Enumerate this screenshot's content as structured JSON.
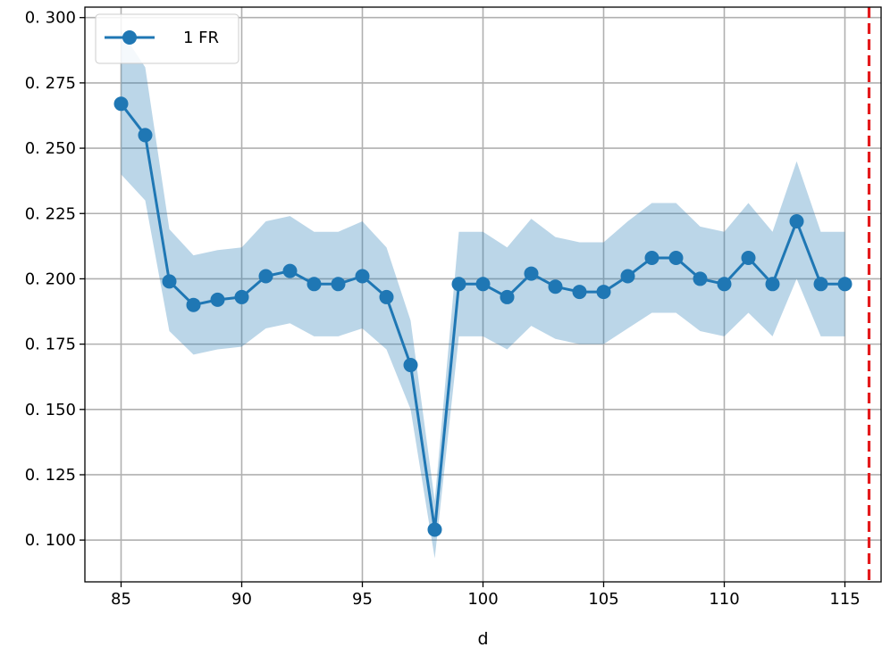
{
  "chart_data": {
    "type": "line",
    "xlabel": "d",
    "ylabel": "",
    "xlim": [
      83.5,
      116.5
    ],
    "ylim": [
      0.084,
      0.304
    ],
    "xticks": [
      85,
      90,
      95,
      100,
      105,
      110,
      115
    ],
    "xtick_labels": [
      "85",
      "90",
      "95",
      "100",
      "105",
      "110",
      "115"
    ],
    "yticks": [
      0.1,
      0.125,
      0.15,
      0.175,
      0.2,
      0.225,
      0.25,
      0.275,
      0.3
    ],
    "ytick_labels": [
      "0. 100",
      "0. 125",
      "0. 150",
      "0. 175",
      "0. 200",
      "0. 225",
      "0. 250",
      "0. 275",
      "0. 300"
    ],
    "grid": true,
    "legend_position": "top-left",
    "series": [
      {
        "name": "1 FR",
        "color": "#1f77b4",
        "band_color": "#1f77b4",
        "x": [
          85,
          86,
          87,
          88,
          89,
          90,
          91,
          92,
          93,
          94,
          95,
          96,
          97,
          98,
          99,
          100,
          101,
          102,
          103,
          104,
          105,
          106,
          107,
          108,
          109,
          110,
          111,
          112,
          113,
          114,
          115
        ],
        "values": [
          0.267,
          0.255,
          0.199,
          0.19,
          0.192,
          0.193,
          0.201,
          0.203,
          0.198,
          0.198,
          0.201,
          0.193,
          0.167,
          0.104,
          0.198,
          0.198,
          0.193,
          0.202,
          0.197,
          0.195,
          0.195,
          0.201,
          0.208,
          0.208,
          0.2,
          0.198,
          0.208,
          0.198,
          0.222,
          0.198,
          0.198
        ],
        "upper": [
          0.295,
          0.281,
          0.219,
          0.209,
          0.211,
          0.212,
          0.222,
          0.224,
          0.218,
          0.218,
          0.222,
          0.212,
          0.184,
          0.115,
          0.218,
          0.218,
          0.212,
          0.223,
          0.216,
          0.214,
          0.214,
          0.222,
          0.229,
          0.229,
          0.22,
          0.218,
          0.229,
          0.218,
          0.245,
          0.218,
          0.218
        ],
        "lower": [
          0.24,
          0.23,
          0.18,
          0.171,
          0.173,
          0.174,
          0.181,
          0.183,
          0.178,
          0.178,
          0.181,
          0.173,
          0.15,
          0.093,
          0.178,
          0.178,
          0.173,
          0.182,
          0.177,
          0.175,
          0.175,
          0.181,
          0.187,
          0.187,
          0.18,
          0.178,
          0.187,
          0.178,
          0.2,
          0.178,
          0.178
        ]
      }
    ],
    "vline": {
      "x": 116,
      "color": "#e41a1c",
      "style": "dashed"
    }
  }
}
